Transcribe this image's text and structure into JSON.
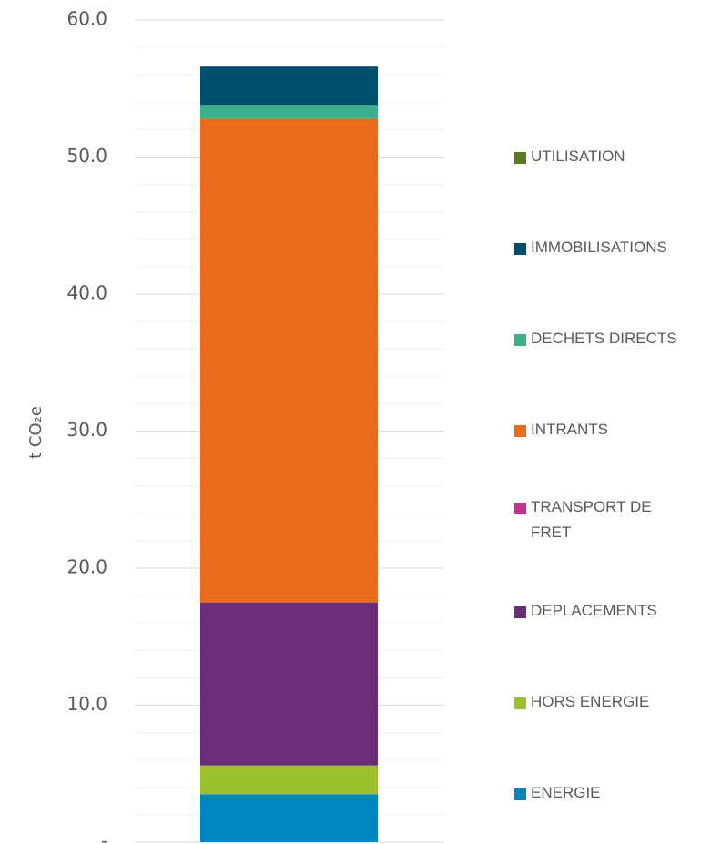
{
  "chart_data": {
    "type": "stacked_bar",
    "y_label": "t CO₂e",
    "categories": [
      null
    ],
    "series": [
      {
        "name": "ENERGIE",
        "color": "#0085c0",
        "values": [
          3.5
        ]
      },
      {
        "name": "HORS ENERGIE",
        "color": "#9dc12e",
        "values": [
          2.1
        ]
      },
      {
        "name": "DEPLACEMENTS",
        "color": "#6a2d7a",
        "values": [
          11.9
        ]
      },
      {
        "name": "TRANSPORT DE FRET",
        "color": "#c0348e",
        "values": [
          0
        ]
      },
      {
        "name": "INTRANTS",
        "color": "#ea6a1e",
        "values": [
          35.3
        ]
      },
      {
        "name": "DECHETS DIRECTS",
        "color": "#3ab08c",
        "values": [
          1.0
        ]
      },
      {
        "name": "IMMOBILISATIONS",
        "color": "#004e6e",
        "values": [
          2.8
        ]
      },
      {
        "name": "UTILISATION",
        "color": "#5a7a1e",
        "values": [
          0
        ]
      }
    ],
    "ylim": [
      0,
      60
    ],
    "yticks": [
      {
        "value": 0,
        "label": "-"
      },
      {
        "value": 10,
        "label": "10.0"
      },
      {
        "value": 20,
        "label": "20.0"
      },
      {
        "value": 30,
        "label": "30.0"
      },
      {
        "value": 40,
        "label": "40.0"
      },
      {
        "value": 50,
        "label": "50.0"
      },
      {
        "value": 60,
        "label": "60.0"
      }
    ],
    "minor_yticks": [
      2,
      4,
      6,
      8,
      12,
      14,
      16,
      18,
      22,
      24,
      26,
      28,
      32,
      34,
      36,
      38,
      42,
      44,
      46,
      48,
      52,
      54,
      56,
      58
    ],
    "grid": true,
    "legend": "right"
  }
}
